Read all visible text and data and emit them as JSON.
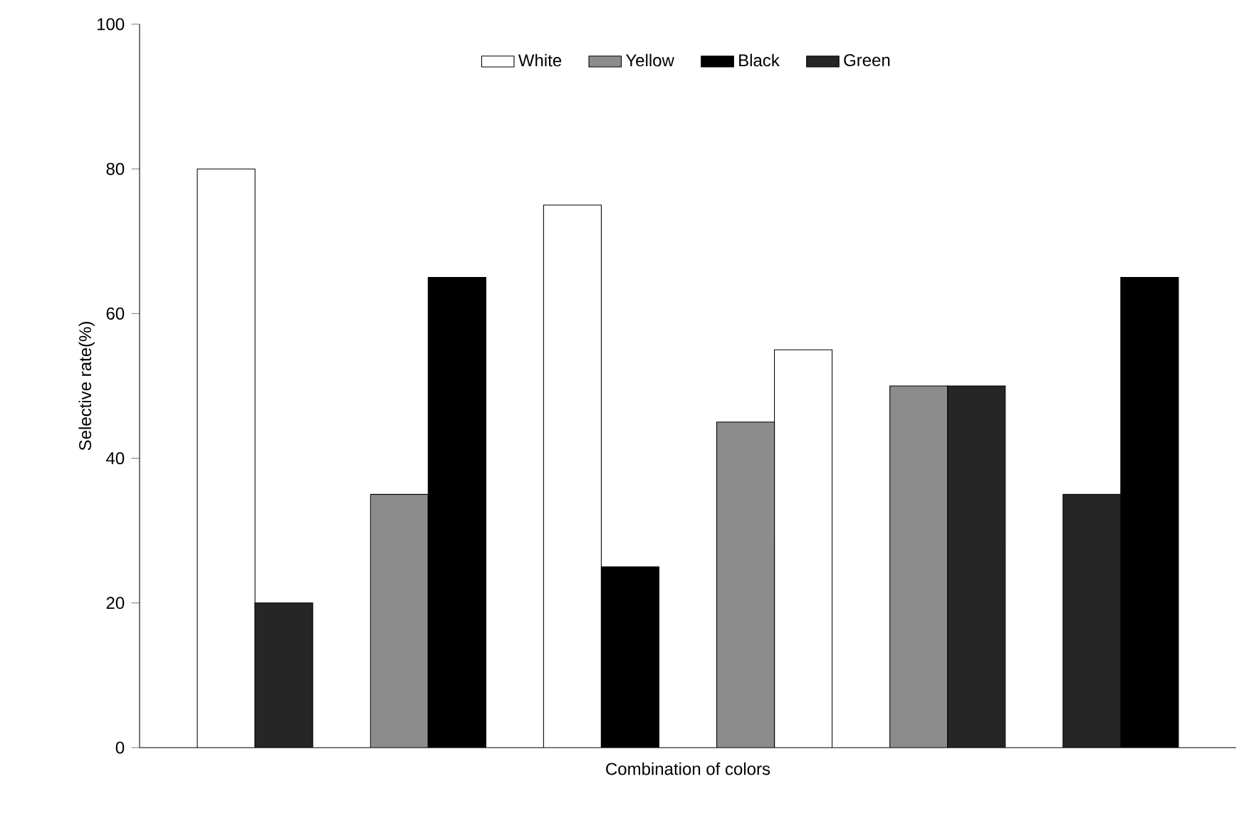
{
  "chart_data": {
    "type": "bar",
    "xlabel": "Combination of colors",
    "ylabel": "Selective rate(%)",
    "categories": [
      null,
      null,
      null,
      null,
      null,
      null,
      null,
      null,
      null,
      null,
      null,
      null,
      null,
      null,
      null,
      null,
      null,
      null,
      null
    ],
    "series": [
      {
        "name": "White",
        "color": "#ffffff",
        "values": [
          null,
          80,
          null,
          null,
          null,
          null,
          null,
          75,
          null,
          null,
          null,
          55,
          null,
          null,
          null,
          null,
          null,
          null,
          null
        ]
      },
      {
        "name": "Yellow",
        "color": "#8c8c8c",
        "values": [
          null,
          null,
          null,
          null,
          35,
          null,
          null,
          null,
          null,
          null,
          45,
          null,
          null,
          50,
          null,
          null,
          null,
          null,
          null
        ]
      },
      {
        "name": "Black",
        "color": "#000000",
        "values": [
          null,
          null,
          null,
          null,
          null,
          65,
          null,
          null,
          25,
          null,
          null,
          null,
          null,
          null,
          null,
          null,
          null,
          65,
          null
        ]
      },
      {
        "name": "Green",
        "color": "#262626",
        "values": [
          null,
          null,
          20,
          null,
          null,
          null,
          null,
          null,
          null,
          null,
          null,
          null,
          null,
          null,
          50,
          null,
          35,
          null,
          null
        ]
      }
    ],
    "ylim": [
      0,
      100
    ],
    "yticks": [
      0,
      20,
      40,
      60,
      80,
      100
    ],
    "legend": "top",
    "grid": false
  }
}
